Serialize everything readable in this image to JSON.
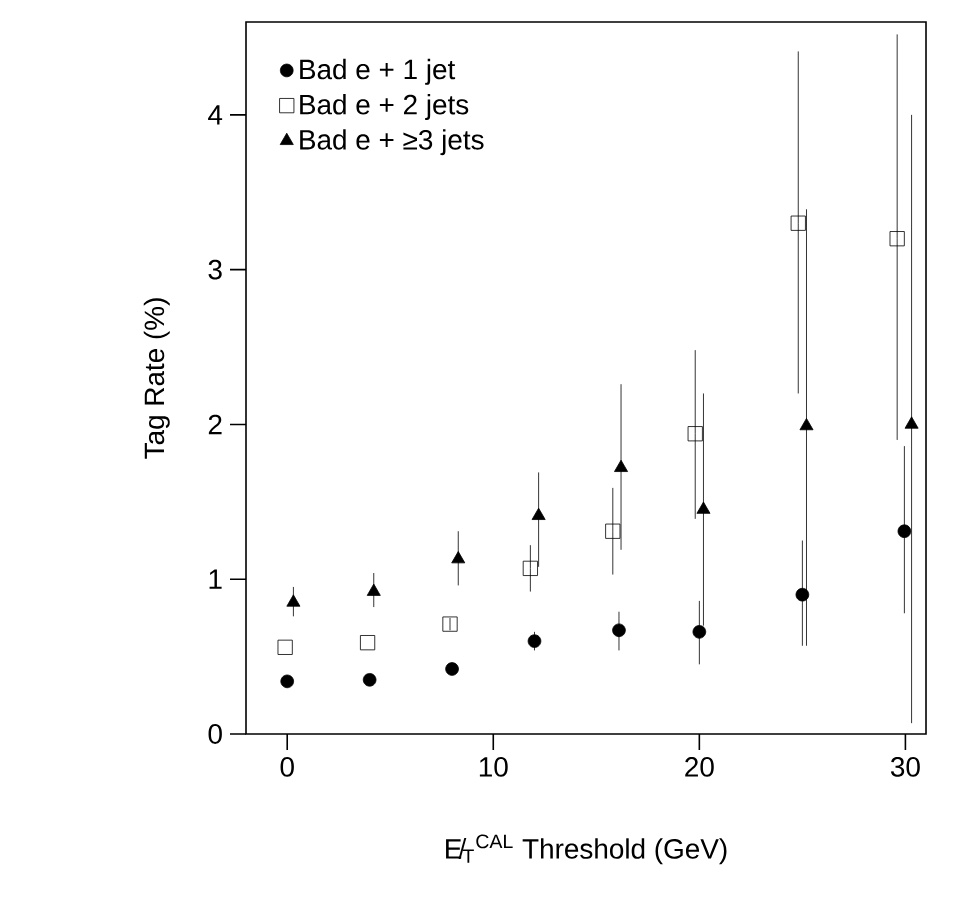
{
  "chart_data": {
    "type": "scatter",
    "xlabel": "E̸$_{T}$$^{CAL}$ Threshold (GeV)",
    "ylabel": "Tag Rate (%)",
    "xlim": [
      -2,
      31
    ],
    "ylim": [
      0,
      4.6
    ],
    "xticks": [
      0,
      10,
      20,
      30
    ],
    "yticks": [
      0,
      1,
      2,
      3,
      4
    ],
    "legend": "top left",
    "series": [
      {
        "name": "Bad e + 1 jet",
        "color": "#000000",
        "marker": "circle",
        "x": [
          0,
          4,
          8,
          12,
          16.1,
          20,
          25,
          29.95
        ],
        "values": [
          0.34,
          0.35,
          0.42,
          0.6,
          0.67,
          0.66,
          0.9,
          1.31
        ],
        "errors": [
          null,
          null,
          null,
          0.06,
          [
            0.54,
            0.79
          ],
          [
            0.45,
            0.86
          ],
          [
            0.57,
            1.25
          ],
          [
            0.78,
            1.86
          ]
        ]
      },
      {
        "name": "Bad e + 2 jets",
        "color": "#000000",
        "marker": "square",
        "x": [
          -0.1,
          3.9,
          7.9,
          11.8,
          15.8,
          19.8,
          24.8,
          29.6
        ],
        "values": [
          0.56,
          0.59,
          0.71,
          1.07,
          1.31,
          1.94,
          3.3,
          3.2
        ],
        "errors": [
          null,
          null,
          0.04,
          [
            0.92,
            1.22
          ],
          [
            1.03,
            1.59
          ],
          [
            1.39,
            2.48
          ],
          [
            2.2,
            4.41
          ],
          [
            1.9,
            4.52
          ]
        ]
      },
      {
        "name": "Bad e + ≥3 jets",
        "color": "#000000",
        "marker": "triangle",
        "x": [
          0.3,
          4.2,
          8.3,
          12.2,
          16.2,
          20.2,
          25.2,
          30.3
        ],
        "values": [
          0.85,
          0.92,
          1.13,
          1.41,
          1.72,
          1.45,
          1.99,
          2.0
        ],
        "errors": [
          [
            0.76,
            0.95
          ],
          [
            0.82,
            1.04
          ],
          [
            0.96,
            1.31
          ],
          [
            1.08,
            1.69
          ],
          [
            1.19,
            2.26
          ],
          [
            0.7,
            2.2
          ],
          [
            0.57,
            3.39
          ],
          [
            0.07,
            4.0
          ]
        ]
      }
    ]
  }
}
